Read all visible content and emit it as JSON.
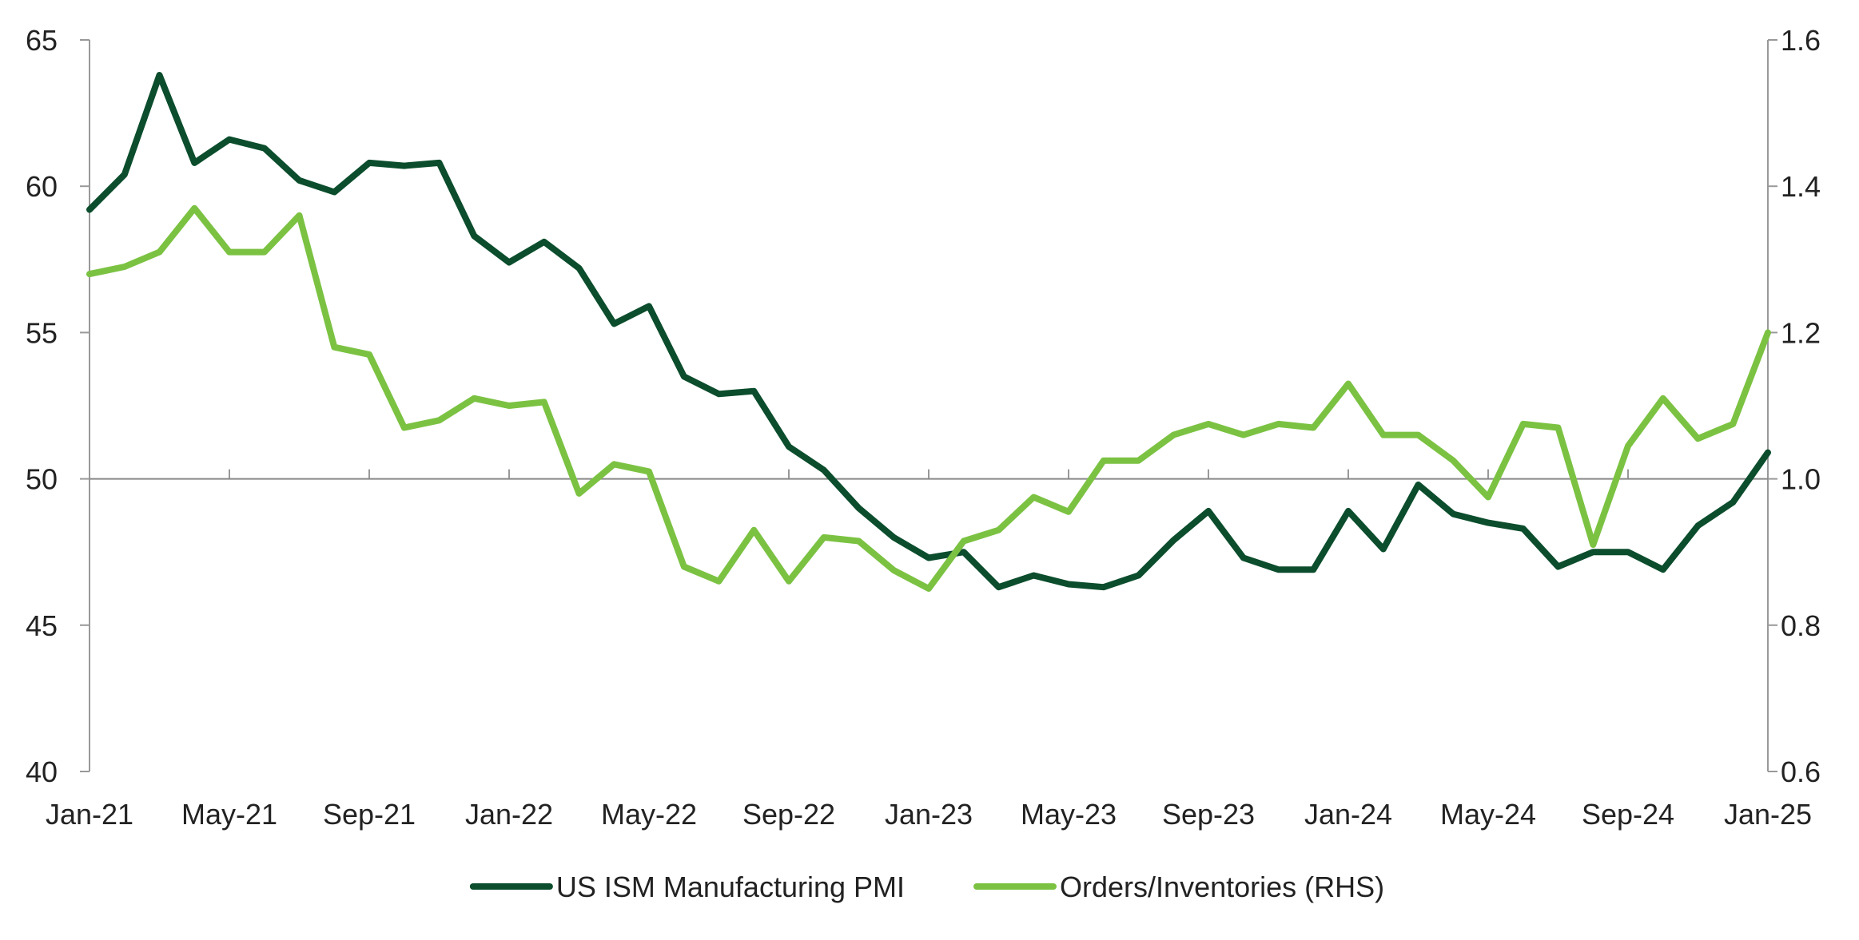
{
  "chart_data": {
    "type": "line",
    "title": "",
    "xlabel": "",
    "ylabel": "",
    "y2label": "",
    "x": [
      "Jan-21",
      "Feb-21",
      "Mar-21",
      "Apr-21",
      "May-21",
      "Jun-21",
      "Jul-21",
      "Aug-21",
      "Sep-21",
      "Oct-21",
      "Nov-21",
      "Dec-21",
      "Jan-22",
      "Feb-22",
      "Mar-22",
      "Apr-22",
      "May-22",
      "Jun-22",
      "Jul-22",
      "Aug-22",
      "Sep-22",
      "Oct-22",
      "Nov-22",
      "Dec-22",
      "Jan-23",
      "Feb-23",
      "Mar-23",
      "Apr-23",
      "May-23",
      "Jun-23",
      "Jul-23",
      "Aug-23",
      "Sep-23",
      "Oct-23",
      "Nov-23",
      "Dec-23",
      "Jan-24",
      "Feb-24",
      "Mar-24",
      "Apr-24",
      "May-24",
      "Jun-24",
      "Jul-24",
      "Aug-24",
      "Sep-24",
      "Oct-24",
      "Nov-24",
      "Dec-24",
      "Jan-25"
    ],
    "x_ticks": [
      "Jan-21",
      "May-21",
      "Sep-21",
      "Jan-22",
      "May-22",
      "Sep-22",
      "Jan-23",
      "May-23",
      "Sep-23",
      "Jan-24",
      "May-24",
      "Sep-24",
      "Jan-25"
    ],
    "ylim": [
      40,
      65
    ],
    "y_ticks": [
      "40",
      "45",
      "50",
      "55",
      "60",
      "65"
    ],
    "y2lim": [
      0.6,
      1.6
    ],
    "y2_ticks": [
      "0.6",
      "0.8",
      "1.0",
      "1.2",
      "1.4",
      "1.6"
    ],
    "reference_line": 50,
    "legend_position": "bottom-center",
    "series": [
      {
        "name": "US ISM Manufacturing PMI",
        "axis": "left",
        "color": "#0b4d2c",
        "values": [
          59.2,
          60.4,
          63.8,
          60.8,
          61.6,
          61.3,
          60.2,
          59.8,
          60.8,
          60.7,
          60.8,
          58.3,
          57.4,
          58.1,
          57.2,
          55.3,
          55.9,
          53.5,
          52.9,
          53.0,
          51.1,
          50.3,
          49.0,
          48.0,
          47.3,
          47.5,
          46.3,
          46.7,
          46.4,
          46.3,
          46.7,
          47.9,
          48.9,
          47.3,
          46.9,
          46.9,
          48.9,
          47.6,
          49.8,
          48.8,
          48.5,
          48.3,
          47.0,
          47.5,
          47.5,
          46.9,
          48.4,
          49.2,
          50.9
        ]
      },
      {
        "name": "Orders/Inventories (RHS)",
        "axis": "right",
        "color": "#7bc242",
        "values": [
          1.28,
          1.29,
          1.31,
          1.37,
          1.31,
          1.31,
          1.36,
          1.18,
          1.17,
          1.07,
          1.08,
          1.11,
          1.1,
          1.105,
          0.98,
          1.02,
          1.01,
          0.88,
          0.86,
          0.93,
          0.86,
          0.92,
          0.915,
          0.875,
          0.85,
          0.915,
          0.93,
          0.975,
          0.955,
          1.025,
          1.025,
          1.06,
          1.075,
          1.06,
          1.075,
          1.07,
          1.13,
          1.06,
          1.06,
          1.025,
          0.975,
          1.075,
          1.07,
          0.91,
          1.045,
          1.11,
          1.055,
          1.075,
          1.2
        ]
      }
    ]
  }
}
